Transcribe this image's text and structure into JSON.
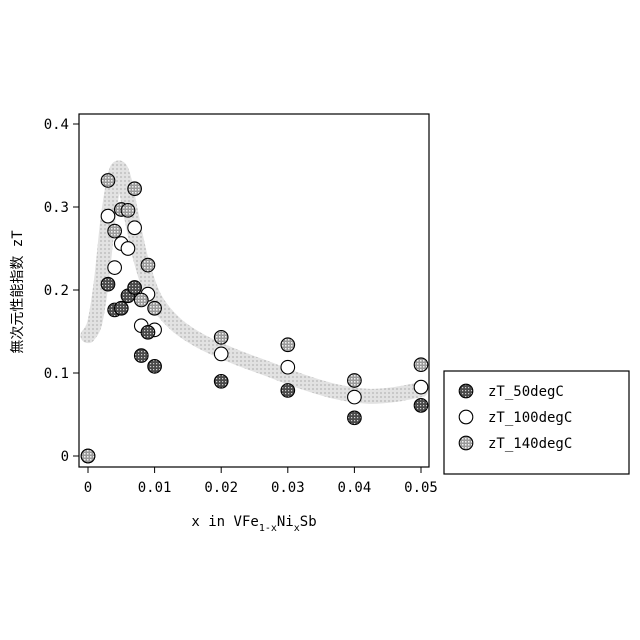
{
  "chart_data": {
    "type": "scatter",
    "title": "",
    "xlabel": {
      "prefix": "x in VFe",
      "sub1": "1-x",
      "mid": "Ni",
      "sub2": "x",
      "suffix": "Sb"
    },
    "ylabel": "無次元性能指数  zT",
    "xlim": [
      0,
      0.05
    ],
    "ylim": [
      0,
      0.4
    ],
    "xticks": [
      0,
      0.01,
      0.02,
      0.03,
      0.04,
      0.05
    ],
    "xtick_labels": [
      "0",
      "0.01",
      "0.02",
      "0.03",
      "0.04",
      "0.05"
    ],
    "yticks": [
      0,
      0.1,
      0.2,
      0.3,
      0.4
    ],
    "ytick_labels": [
      "0",
      "0.1",
      "0.2",
      "0.3",
      "0.4"
    ],
    "legend_position": "outside-right-bottom",
    "grid": false,
    "trend_band": {
      "color": "#d4d4d4",
      "points": [
        [
          0,
          0.145
        ],
        [
          0.001,
          0.16
        ],
        [
          0.002,
          0.21
        ],
        [
          0.003,
          0.285
        ],
        [
          0.004,
          0.335
        ],
        [
          0.0047,
          0.347
        ],
        [
          0.0055,
          0.33
        ],
        [
          0.0065,
          0.29
        ],
        [
          0.008,
          0.235
        ],
        [
          0.01,
          0.19
        ],
        [
          0.013,
          0.16
        ],
        [
          0.017,
          0.138
        ],
        [
          0.022,
          0.12
        ],
        [
          0.027,
          0.105
        ],
        [
          0.032,
          0.09
        ],
        [
          0.037,
          0.078
        ],
        [
          0.042,
          0.072
        ],
        [
          0.046,
          0.074
        ],
        [
          0.05,
          0.08
        ]
      ]
    },
    "series": [
      {
        "name": "zT_50degC",
        "marker": "dark-hatched",
        "points": [
          [
            0,
            0
          ],
          [
            0.003,
            0.207
          ],
          [
            0.004,
            0.176
          ],
          [
            0.005,
            0.178
          ],
          [
            0.006,
            0.193
          ],
          [
            0.007,
            0.203
          ],
          [
            0.008,
            0.121
          ],
          [
            0.009,
            0.149
          ],
          [
            0.01,
            0.108
          ],
          [
            0.02,
            0.09
          ],
          [
            0.03,
            0.079
          ],
          [
            0.04,
            0.046
          ],
          [
            0.05,
            0.061
          ]
        ]
      },
      {
        "name": "zT_100degC",
        "marker": "open",
        "points": [
          [
            0.003,
            0.289
          ],
          [
            0.004,
            0.227
          ],
          [
            0.005,
            0.256
          ],
          [
            0.006,
            0.25
          ],
          [
            0.007,
            0.275
          ],
          [
            0.008,
            0.157
          ],
          [
            0.009,
            0.195
          ],
          [
            0.01,
            0.152
          ],
          [
            0.02,
            0.123
          ],
          [
            0.03,
            0.107
          ],
          [
            0.04,
            0.071
          ],
          [
            0.05,
            0.083
          ]
        ]
      },
      {
        "name": "zT_140degC",
        "marker": "light-hatched",
        "points": [
          [
            0,
            0
          ],
          [
            0.003,
            0.332
          ],
          [
            0.004,
            0.271
          ],
          [
            0.005,
            0.297
          ],
          [
            0.006,
            0.296
          ],
          [
            0.007,
            0.322
          ],
          [
            0.008,
            0.188
          ],
          [
            0.009,
            0.23
          ],
          [
            0.01,
            0.178
          ],
          [
            0.02,
            0.143
          ],
          [
            0.03,
            0.134
          ],
          [
            0.04,
            0.091
          ],
          [
            0.05,
            0.11
          ]
        ]
      }
    ]
  }
}
